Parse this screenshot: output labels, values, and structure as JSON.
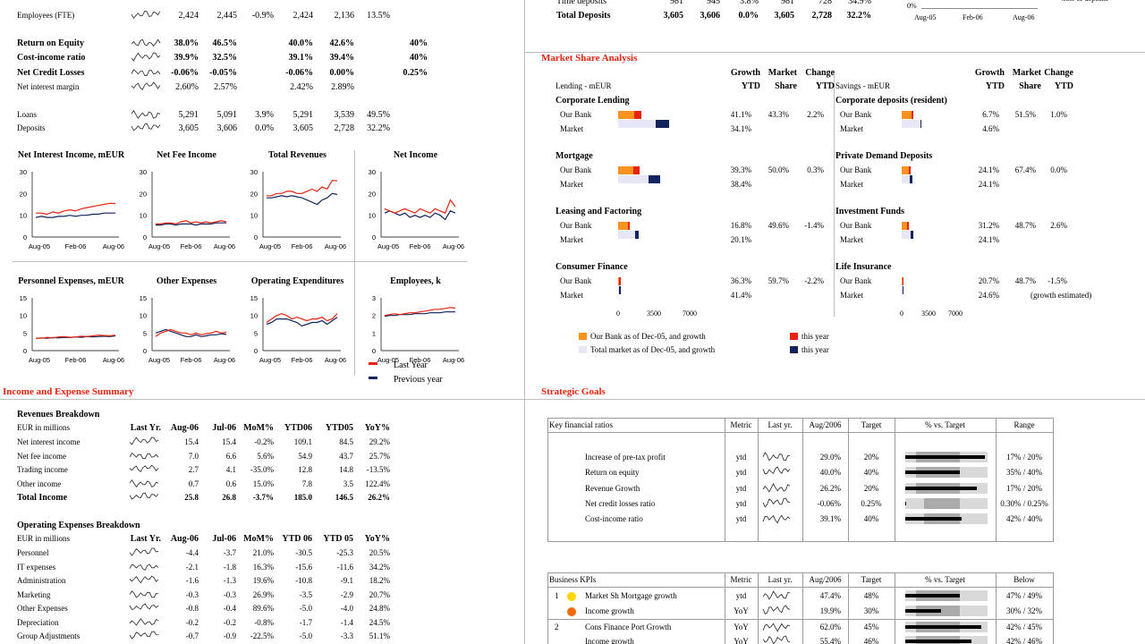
{
  "colors": {
    "orange": "#f7931e",
    "red": "#e8220c",
    "navy": "#12235e",
    "lav": "#e6e6f7",
    "grey": "#aaaaaa",
    "yellow": "#ffd400",
    "dark": "#1a1a1a"
  },
  "top_kpis": {
    "rows": [
      {
        "label": "Employees (FTE)",
        "bold": false,
        "v": [
          "2,424",
          "2,445",
          "-0.9%",
          "2,424",
          "2,136",
          "13.5%",
          ""
        ]
      },
      {
        "label": "Return on Equity",
        "bold": true,
        "v": [
          "38.0%",
          "46.5%",
          "",
          "40.0%",
          "42.6%",
          "",
          "40%"
        ]
      },
      {
        "label": "Cost-income ratio",
        "bold": true,
        "v": [
          "39.9%",
          "32.5%",
          "",
          "39.1%",
          "39.4%",
          "",
          "40%"
        ]
      },
      {
        "label": "Net Credit Losses",
        "bold": true,
        "v": [
          "-0.06%",
          "-0.05%",
          "",
          "-0.06%",
          "0.00%",
          "",
          "0.25%"
        ]
      },
      {
        "label": "Net interest margin",
        "bold": false,
        "v": [
          "2.60%",
          "2.57%",
          "",
          "2.42%",
          "2.89%",
          "",
          ""
        ]
      },
      {
        "label": "Loans",
        "bold": false,
        "v": [
          "5,291",
          "5,091",
          "3.9%",
          "5,291",
          "3,539",
          "49.5%",
          ""
        ]
      },
      {
        "label": "Deposits",
        "bold": false,
        "v": [
          "3,605",
          "3,606",
          "0.0%",
          "3,605",
          "2,728",
          "32.2%",
          ""
        ]
      }
    ]
  },
  "top_deposits": {
    "rows": [
      {
        "label": "Time deposits",
        "bold": false,
        "v": [
          "981",
          "945",
          "3.8%",
          "981",
          "728",
          "34.9%"
        ]
      },
      {
        "label": "Total Deposits",
        "bold": true,
        "v": [
          "3,605",
          "3,606",
          "0.0%",
          "3,605",
          "2,728",
          "32.2%"
        ]
      }
    ],
    "mini_axis": {
      "y_label": "0%",
      "x_ticks": [
        "Aug-05",
        "Feb-06",
        "Aug-06"
      ],
      "note": "Cost-of-deposits"
    }
  },
  "charts": {
    "x_ticks": [
      "Aug-05",
      "Feb-06",
      "Aug-06"
    ],
    "row1": [
      {
        "title": "Net Interest Income, mEUR",
        "y_ticks": [
          "30",
          "20",
          "10",
          "0"
        ],
        "ymax": 30,
        "last": [
          11,
          11,
          10.5,
          11.5,
          11,
          12,
          12.5,
          12,
          13,
          13.5,
          14,
          14.5,
          15,
          15.5,
          15.4
        ],
        "prev": [
          9,
          9.5,
          9,
          9,
          9.5,
          9.5,
          10,
          9.5,
          10,
          10,
          10.5,
          10.5,
          11,
          11,
          11
        ]
      },
      {
        "title": "Net Fee Income",
        "y_ticks": [
          "30",
          "20",
          "10",
          "0"
        ],
        "ymax": 30,
        "last": [
          6,
          6,
          6.5,
          6.5,
          6,
          7,
          7.5,
          6.5,
          7,
          6.5,
          7,
          6.5,
          7,
          7.5,
          7
        ],
        "prev": [
          5.5,
          5.5,
          6,
          6,
          5.5,
          6,
          6,
          6,
          5.5,
          6,
          6,
          6,
          6.5,
          6.5,
          6.5
        ]
      },
      {
        "title": "Total Revenues",
        "y_ticks": [
          "30",
          "20",
          "10",
          "0"
        ],
        "ymax": 30,
        "last": [
          19,
          19,
          20,
          20,
          21,
          21,
          20,
          20,
          21,
          22,
          21,
          23,
          22,
          26,
          25.8
        ],
        "prev": [
          18,
          18,
          18.5,
          19,
          18.5,
          19,
          18.5,
          18,
          17,
          16,
          15,
          17,
          18,
          20,
          19.5
        ]
      },
      {
        "title": "Net Income",
        "y_ticks": [
          "30",
          "20",
          "10",
          "0"
        ],
        "ymax": 30,
        "last": [
          13,
          12,
          11,
          12,
          13,
          12,
          11,
          13,
          12,
          11,
          13,
          12,
          11,
          17,
          14
        ],
        "prev": [
          11,
          12,
          11,
          10,
          11,
          9,
          10,
          9,
          10,
          9,
          11,
          10,
          8,
          12,
          11
        ]
      }
    ],
    "row2": [
      {
        "title": "Personnel Expenses, mEUR",
        "y_ticks": [
          "15",
          "10",
          "5",
          "0"
        ],
        "ymax": 15,
        "last": [
          3.5,
          3.5,
          3.8,
          3.6,
          3.9,
          4,
          3.8,
          3.9,
          4.1,
          4,
          4.2,
          4.4,
          4.3,
          4.2,
          4.4
        ],
        "prev": [
          3.5,
          3.6,
          3.5,
          3.7,
          3.6,
          3.8,
          3.7,
          3.9,
          3.8,
          4,
          3.9,
          4,
          4.1,
          4,
          4.2
        ]
      },
      {
        "title": "Other Expenses",
        "y_ticks": [
          "15",
          "10",
          "5",
          "0"
        ],
        "ymax": 15,
        "last": [
          4,
          5,
          5.5,
          6,
          5.5,
          5,
          5,
          4.5,
          5,
          4.5,
          4.8,
          5,
          5.5,
          5,
          5.2
        ],
        "prev": [
          5,
          5.5,
          6,
          5.5,
          5,
          4.5,
          4,
          4,
          4.5,
          4,
          4.2,
          4.5,
          4.5,
          4.8,
          4.6
        ]
      },
      {
        "title": "Operating Expenditures",
        "y_ticks": [
          "15",
          "10",
          "5",
          "0"
        ],
        "ymax": 15,
        "last": [
          8,
          9,
          10,
          10.5,
          10,
          9,
          9.5,
          9,
          8.5,
          9,
          9,
          9.5,
          8.5,
          9,
          10.5
        ],
        "prev": [
          7.5,
          8,
          9,
          9,
          9,
          8.5,
          8,
          7,
          7.5,
          8,
          8,
          8.5,
          7.5,
          8.5,
          9.5
        ]
      },
      {
        "title": "Employees, k",
        "y_ticks": [
          "3",
          "2",
          "1",
          "0"
        ],
        "ymax": 3,
        "last": [
          2.0,
          2.05,
          2.1,
          2.05,
          2.1,
          2.15,
          2.15,
          2.2,
          2.25,
          2.3,
          2.35,
          2.35,
          2.4,
          2.45,
          2.42
        ],
        "prev": [
          1.95,
          2.0,
          2.0,
          2.05,
          2.05,
          2.05,
          2.1,
          2.1,
          2.1,
          2.15,
          2.15,
          2.15,
          2.2,
          2.2,
          2.2
        ]
      }
    ],
    "legend": {
      "last": "Last Year",
      "prev": "Previous year"
    }
  },
  "income_summary": {
    "section_title": "Income and Expense Summary",
    "revenues": {
      "title": "Revenues Breakdown",
      "units": "EUR in millions",
      "headers": [
        "Last Yr.",
        "Aug-06",
        "Jul-06",
        "MoM%",
        "YTD06",
        "YTD05",
        "YoY%"
      ],
      "rows": [
        {
          "label": "Net interest income",
          "bold": false,
          "v": [
            "15.4",
            "15.4",
            "-0.2%",
            "109.1",
            "84.5",
            "29.2%"
          ]
        },
        {
          "label": "Net fee income",
          "bold": false,
          "v": [
            "7.0",
            "6.6",
            "5.6%",
            "54.9",
            "43.7",
            "25.7%"
          ]
        },
        {
          "label": "Trading income",
          "bold": false,
          "v": [
            "2.7",
            "4.1",
            "-35.0%",
            "12.8",
            "14.8",
            "-13.5%"
          ]
        },
        {
          "label": "Other income",
          "bold": false,
          "v": [
            "0.7",
            "0.6",
            "15.0%",
            "7.8",
            "3.5",
            "122.4%"
          ]
        },
        {
          "label": "Total Income",
          "bold": true,
          "v": [
            "25.8",
            "26.8",
            "-3.7%",
            "185.0",
            "146.5",
            "26.2%"
          ]
        }
      ]
    },
    "expenses": {
      "title": "Operating Expenses Breakdown",
      "units": "EUR in millions",
      "headers": [
        "Last Yr.",
        "Aug-06",
        "Jul-06",
        "MoM%",
        "YTD 06",
        "YTD 05",
        "YoY%"
      ],
      "rows": [
        {
          "label": "Personnel",
          "v": [
            "-4.4",
            "-3.7",
            "21.0%",
            "-30.5",
            "-25.3",
            "20.5%"
          ]
        },
        {
          "label": "IT expenses",
          "v": [
            "-2.1",
            "-1.8",
            "16.3%",
            "-15.6",
            "-11.6",
            "34.2%"
          ]
        },
        {
          "label": "Administration",
          "v": [
            "-1.6",
            "-1.3",
            "19.6%",
            "-10.8",
            "-9.1",
            "18.2%"
          ]
        },
        {
          "label": "Marketing",
          "v": [
            "-0.3",
            "-0.3",
            "26.9%",
            "-3.5",
            "-2.9",
            "20.7%"
          ]
        },
        {
          "label": "Other Expenses",
          "v": [
            "-0.8",
            "-0.4",
            "89.6%",
            "-5.0",
            "-4.0",
            "24.8%"
          ]
        },
        {
          "label": "Depreciation",
          "v": [
            "-0.2",
            "-0.2",
            "-0.8%",
            "-1.7",
            "-1.4",
            "24.5%"
          ]
        },
        {
          "label": "Group Adjustments",
          "v": [
            "-0.7",
            "-0.9",
            "-22.5%",
            "-5.0",
            "-3.3",
            "51.1%"
          ]
        }
      ]
    }
  },
  "market_share": {
    "title": "Market Share Analysis",
    "left_header": {
      "section": "Lending - mEUR",
      "h1": [
        "Growth",
        "Market",
        "Change"
      ],
      "h2": [
        "YTD",
        "Share",
        "YTD"
      ]
    },
    "right_header": {
      "section": "Savings - mEUR",
      "h1": [
        "Growth",
        "Market",
        "Change"
      ],
      "h2": [
        "YTD",
        "Share",
        "YTD"
      ]
    },
    "left": [
      {
        "name": "Corporate Lending",
        "bank": [
          "41.1%",
          "43.3%",
          "2.2%"
        ],
        "market": "34.1%",
        "bank_base": 1600,
        "bank_growth": 650,
        "mkt_base": 3700,
        "mkt_growth": 1270
      },
      {
        "name": "Mortgage",
        "bank": [
          "39.3%",
          "50.0%",
          "0.3%"
        ],
        "market": "38.4%",
        "bank_base": 1500,
        "bank_growth": 600,
        "mkt_base": 3000,
        "mkt_growth": 1150
      },
      {
        "name": "Leasing and Factoring",
        "bank": [
          "16.8%",
          "49.6%",
          "-1.4%"
        ],
        "market": "20.1%",
        "bank_base": 1000,
        "bank_growth": 170,
        "mkt_base": 1700,
        "mkt_growth": 340
      },
      {
        "name": "Consumer Finance",
        "bank": [
          "36.3%",
          "59.7%",
          "-2.2%"
        ],
        "market": "41.4%",
        "bank_base": 100,
        "bank_growth": 40,
        "mkt_base": 130,
        "mkt_growth": 55
      }
    ],
    "right": [
      {
        "name": "Corporate deposits (resident)",
        "bank": [
          "6.7%",
          "51.5%",
          "1.0%"
        ],
        "market": "4.6%",
        "bank_base": 1300,
        "bank_growth": 90,
        "mkt_base": 2400,
        "mkt_growth": 110
      },
      {
        "name": "Private Demand Deposits",
        "bank": [
          "24.1%",
          "67.4%",
          "0.0%"
        ],
        "market": "24.1%",
        "bank_base": 900,
        "bank_growth": 220,
        "mkt_base": 1100,
        "mkt_growth": 270
      },
      {
        "name": "Investment Funds",
        "bank": [
          "31.2%",
          "48.7%",
          "2.6%"
        ],
        "market": "24.1%",
        "bank_base": 700,
        "bank_growth": 220,
        "mkt_base": 1200,
        "mkt_growth": 290
      },
      {
        "name": "Life Insurance",
        "bank": [
          "20.7%",
          "48.7%",
          "-1.5%"
        ],
        "market": "24.6%",
        "market_note": "(growth estimated)",
        "bank_base": 60,
        "bank_growth": 12,
        "mkt_base": 110,
        "mkt_growth": 27
      }
    ],
    "row_labels": {
      "bank": "Our Bank",
      "market": "Market"
    },
    "axis": [
      "0",
      "3500",
      "7000"
    ],
    "axis_max": 7000,
    "legend": [
      {
        "label": "Our Bank as of Dec-05, and growth",
        "color": "#f7931e"
      },
      {
        "label": "Total market as of Dec-05, and growth",
        "color": "#e6e6f7"
      },
      {
        "label": "this year",
        "color": "#e8220c"
      },
      {
        "label": "this year",
        "color": "#12235e"
      }
    ]
  },
  "strategic_goals": {
    "title": "Strategic Goals",
    "table1": {
      "headers": [
        "Key financial ratios",
        "Metric",
        "Last yr.",
        "Aug/2006",
        "Target",
        "% vs. Target",
        "Range"
      ],
      "rows": [
        {
          "label": "Increase of pre-tax profit",
          "metric": "ytd",
          "value": "29.0%",
          "target": "20%",
          "range": "17% / 20%",
          "pct": 145,
          "range_pct": [
            20,
            100
          ]
        },
        {
          "label": "Return on equity",
          "metric": "ytd",
          "value": "40.0%",
          "target": "40%",
          "range": "35% / 40%",
          "pct": 100,
          "range_pct": [
            20,
            100
          ]
        },
        {
          "label": "Revenue Growth",
          "metric": "ytd",
          "value": "26.2%",
          "target": "20%",
          "range": "17% / 20%",
          "pct": 131,
          "range_pct": [
            20,
            100
          ]
        },
        {
          "label": "Net credit losses ratio",
          "metric": "ytd",
          "value": "-0.06%",
          "target": "0.25%",
          "range": "0.30% / 0.25%",
          "pct": 0,
          "range_pct": [
            35,
            100
          ]
        },
        {
          "label": "Cost-income ratio",
          "metric": "ytd",
          "value": "39.1%",
          "target": "40%",
          "range": "42% / 40%",
          "pct": 102,
          "range_pct": [
            35,
            100
          ]
        }
      ]
    },
    "table2": {
      "headers": [
        "Business KPIs",
        "Metric",
        "Last yr.",
        "Aug/2006",
        "Target",
        "% vs. Target",
        "Below"
      ],
      "rows": [
        {
          "num": "1",
          "dot": "#ffd400",
          "label": "Market Sh Mortgage growth",
          "metric": "ytd",
          "value": "47.4%",
          "target": "48%",
          "range": "47% / 49%",
          "pct": 99,
          "range_pct": [
            20,
            100
          ]
        },
        {
          "num": "",
          "dot": "#f06a0f",
          "label": "Income growth",
          "metric": "YoY",
          "value": "19.9%",
          "target": "30%",
          "range": "30% / 32%",
          "pct": 66,
          "range_pct": [
            20,
            100
          ]
        },
        {
          "num": "2",
          "dot": "",
          "label": "Cons Finance Port Growth",
          "metric": "YoY",
          "value": "62.0%",
          "target": "45%",
          "range": "42% / 45%",
          "pct": 138,
          "range_pct": [
            20,
            100
          ]
        },
        {
          "num": "",
          "dot": "",
          "label": "Income growth",
          "metric": "YoY",
          "value": "55.4%",
          "target": "46%",
          "range": "42% / 46%",
          "pct": 120,
          "range_pct": [
            20,
            100
          ]
        }
      ]
    }
  }
}
